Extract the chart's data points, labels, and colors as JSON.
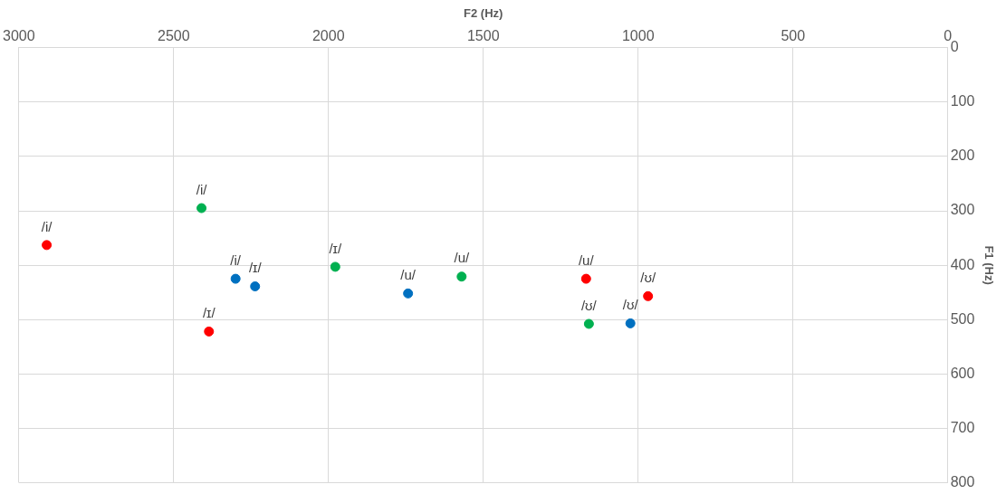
{
  "chart_data": {
    "type": "scatter",
    "xlabel": "F2 (Hz)",
    "ylabel": "F1 (Hz)",
    "xlim": [
      3000,
      0
    ],
    "ylim": [
      800,
      0
    ],
    "xticks": [
      3000,
      2500,
      2000,
      1500,
      1000,
      500,
      0
    ],
    "yticks": [
      0,
      100,
      200,
      300,
      400,
      500,
      600,
      700,
      800
    ],
    "grid": true,
    "legend": false,
    "marker": "circle",
    "series": [
      {
        "color": "#ff0000",
        "x": [
          2910,
          2386,
          1168,
          968
        ],
        "values": [
          363,
          522,
          425,
          457
        ]
      },
      {
        "color": "#00b050",
        "x": [
          2410,
          1978,
          1570,
          1159
        ],
        "values": [
          295,
          403,
          421,
          508
        ]
      },
      {
        "color": "#0070c0",
        "x": [
          2300,
          2237,
          1743,
          1025
        ],
        "values": [
          425,
          439,
          452,
          507
        ]
      }
    ],
    "annotations": [
      {
        "text": "/i/",
        "x": 2910,
        "y": 363
      },
      {
        "text": "/ɪ/",
        "x": 2386,
        "y": 522
      },
      {
        "text": "/u/",
        "x": 1168,
        "y": 425
      },
      {
        "text": "/ʊ/",
        "x": 968,
        "y": 457
      },
      {
        "text": "/i/",
        "x": 2410,
        "y": 295
      },
      {
        "text": "/ɪ/",
        "x": 1978,
        "y": 403
      },
      {
        "text": "/u/",
        "x": 1570,
        "y": 421
      },
      {
        "text": "/ʊ/",
        "x": 1159,
        "y": 508
      },
      {
        "text": "/i/",
        "x": 2300,
        "y": 425
      },
      {
        "text": "/ɪ/",
        "x": 2237,
        "y": 439
      },
      {
        "text": "/u/",
        "x": 1743,
        "y": 452
      },
      {
        "text": "/ʊ/",
        "x": 1025,
        "y": 507
      }
    ]
  }
}
